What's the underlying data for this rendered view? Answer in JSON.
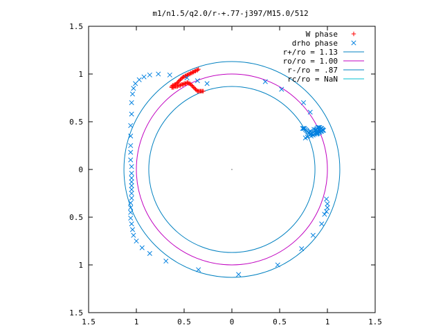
{
  "chart_data": {
    "type": "scatter",
    "title": "m1/n1.5/q2.0/r-+.77-j397/M15.0/512",
    "xlabel": "",
    "ylabel": "",
    "xlim": [
      -1.5,
      1.5
    ],
    "ylim": [
      -1.5,
      1.5
    ],
    "xticks": [
      -1.5,
      -1,
      -0.5,
      0,
      0.5,
      1,
      1.5
    ],
    "yticks": [
      -1.5,
      -1,
      -0.5,
      0,
      0.5,
      1,
      1.5
    ],
    "xtick_labels": [
      "1.5",
      "1",
      "0.5",
      "0",
      "0.5",
      "1",
      "1.5"
    ],
    "ytick_labels": [
      "1.5",
      "1",
      "0.5",
      "0",
      "0.5",
      "1",
      "1.5"
    ],
    "grid": false,
    "legend_position": "top-right",
    "center_point": [
      0,
      0
    ],
    "series": [
      {
        "name": "W phase",
        "marker": "+",
        "color": "#ff0000",
        "x": [
          -0.35,
          -0.36,
          -0.37,
          -0.38,
          -0.39,
          -0.4,
          -0.41,
          -0.42,
          -0.43,
          -0.44,
          -0.45,
          -0.46,
          -0.47,
          -0.48,
          -0.49,
          -0.5,
          -0.51,
          -0.52,
          -0.53,
          -0.54,
          -0.55,
          -0.56,
          -0.57,
          -0.58,
          -0.59,
          -0.6,
          -0.61,
          -0.62,
          -0.63,
          -0.63,
          -0.62,
          -0.61,
          -0.6,
          -0.59,
          -0.58,
          -0.57,
          -0.56,
          -0.55,
          -0.54,
          -0.53,
          -0.52,
          -0.51,
          -0.5,
          -0.49,
          -0.48,
          -0.47,
          -0.46,
          -0.45,
          -0.44,
          -0.43,
          -0.42,
          -0.41,
          -0.4,
          -0.39,
          -0.38,
          -0.37,
          -0.36,
          -0.35,
          -0.34,
          -0.33,
          -0.32,
          -0.31,
          -0.3
        ],
        "y": [
          1.05,
          1.04,
          1.04,
          1.03,
          1.03,
          1.02,
          1.02,
          1.01,
          1.01,
          1.0,
          1.0,
          0.99,
          0.99,
          0.98,
          0.98,
          0.97,
          0.97,
          0.96,
          0.95,
          0.94,
          0.93,
          0.92,
          0.91,
          0.9,
          0.89,
          0.89,
          0.88,
          0.88,
          0.87,
          0.86,
          0.86,
          0.86,
          0.87,
          0.87,
          0.87,
          0.87,
          0.88,
          0.88,
          0.88,
          0.89,
          0.89,
          0.89,
          0.9,
          0.9,
          0.9,
          0.91,
          0.91,
          0.9,
          0.9,
          0.89,
          0.88,
          0.87,
          0.86,
          0.85,
          0.84,
          0.83,
          0.82,
          0.82,
          0.82,
          0.82,
          0.82,
          0.82,
          0.82
        ]
      },
      {
        "name": "drho phase",
        "marker": "x",
        "color": "#0080e0",
        "x": [
          -0.26,
          -0.36,
          -0.47,
          -0.65,
          -0.77,
          -0.86,
          -0.92,
          -0.97,
          -1.01,
          -1.03,
          -1.04,
          -1.05,
          -1.05,
          -1.06,
          -1.06,
          -1.06,
          -1.06,
          -1.06,
          -1.05,
          -1.05,
          -1.05,
          -1.05,
          -1.05,
          -1.05,
          -1.05,
          -1.05,
          -1.06,
          -1.06,
          -1.06,
          -1.06,
          -1.05,
          -1.04,
          -1.03,
          -1.0,
          -0.94,
          -0.86,
          -0.69,
          -0.35,
          0.07,
          0.48,
          0.73,
          0.85,
          0.94,
          0.97,
          0.99,
          1.0,
          1.0,
          0.99,
          0.79,
          0.83,
          0.85,
          0.87,
          0.89,
          0.9,
          0.91,
          0.92,
          0.93,
          0.94,
          0.95,
          0.96,
          0.95,
          0.94,
          0.93,
          0.92,
          0.91,
          0.9,
          0.89,
          0.88,
          0.87,
          0.86,
          0.85,
          0.84,
          0.83,
          0.82,
          0.81,
          0.8,
          0.79,
          0.78,
          0.77,
          0.76,
          0.75,
          0.74,
          0.77,
          0.82,
          0.86,
          0.88,
          0.9,
          0.9,
          0.89,
          0.82,
          0.75,
          0.52,
          0.35
        ],
        "y": [
          0.9,
          0.93,
          0.96,
          0.99,
          1.0,
          0.99,
          0.97,
          0.94,
          0.9,
          0.85,
          0.79,
          0.7,
          0.58,
          0.46,
          0.35,
          0.25,
          0.18,
          0.1,
          0.03,
          -0.04,
          -0.09,
          -0.13,
          -0.17,
          -0.21,
          -0.25,
          -0.3,
          -0.35,
          -0.4,
          -0.45,
          -0.51,
          -0.57,
          -0.63,
          -0.69,
          -0.75,
          -0.82,
          -0.88,
          -0.96,
          -1.05,
          -1.1,
          -1.0,
          -0.83,
          -0.69,
          -0.57,
          -0.47,
          -0.44,
          -0.4,
          -0.36,
          -0.31,
          0.34,
          0.35,
          0.36,
          0.37,
          0.38,
          0.38,
          0.39,
          0.39,
          0.4,
          0.4,
          0.41,
          0.41,
          0.42,
          0.43,
          0.43,
          0.44,
          0.44,
          0.44,
          0.43,
          0.42,
          0.41,
          0.4,
          0.39,
          0.38,
          0.37,
          0.37,
          0.38,
          0.39,
          0.4,
          0.41,
          0.42,
          0.43,
          0.43,
          0.43,
          0.33,
          0.4,
          0.42,
          0.41,
          0.4,
          0.38,
          0.37,
          0.6,
          0.7,
          0.84,
          0.92
        ]
      },
      {
        "name": "r+/ro = 1.13",
        "type": "circle",
        "radius": 1.13,
        "color": "#0080c0"
      },
      {
        "name": "ro/ro = 1.00",
        "type": "circle",
        "radius": 1.0,
        "color": "#c000c0"
      },
      {
        "name": "r-/ro = .87",
        "type": "circle",
        "radius": 0.87,
        "color": "#0080c0"
      },
      {
        "name": "rc/ro = NaN",
        "type": "circle",
        "radius": null,
        "color": "#00c0d0"
      }
    ]
  }
}
